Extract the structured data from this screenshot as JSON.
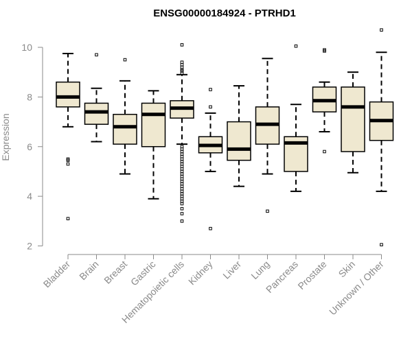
{
  "chart_data": {
    "type": "boxplot",
    "title": "ENSG00000184924 - PTRHD1",
    "xlabel": "",
    "ylabel": "Expression",
    "ylim": [
      2,
      10
    ],
    "yticks": [
      2,
      4,
      6,
      8,
      10
    ],
    "grid": false,
    "legend": "none",
    "box_fill": "#efe8d0",
    "box_stroke": "#000000",
    "axis_color": "#8a8a8a",
    "categories": [
      "Bladder",
      "Brain",
      "Breast",
      "Gastric",
      "Hematopoietic cells",
      "Kidney",
      "Liver",
      "Lung",
      "Pancreas",
      "Prostate",
      "Skin",
      "Unknown / Other"
    ],
    "boxes": [
      {
        "name": "Bladder",
        "whisker_low": 6.8,
        "q1": 7.6,
        "median": 8.0,
        "q3": 8.6,
        "whisker_high": 9.75,
        "outliers": [
          5.5,
          5.45,
          5.3,
          3.1
        ]
      },
      {
        "name": "Brain",
        "whisker_low": 6.2,
        "q1": 6.9,
        "median": 7.4,
        "q3": 7.75,
        "whisker_high": 8.35,
        "outliers": [
          9.7
        ]
      },
      {
        "name": "Breast",
        "whisker_low": 4.9,
        "q1": 6.1,
        "median": 6.8,
        "q3": 7.3,
        "whisker_high": 8.65,
        "outliers": [
          9.5
        ]
      },
      {
        "name": "Gastric",
        "whisker_low": 3.9,
        "q1": 6.0,
        "median": 7.3,
        "q3": 7.75,
        "whisker_high": 8.25,
        "outliers": []
      },
      {
        "name": "Hematopoietic cells",
        "whisker_low": 6.1,
        "q1": 7.15,
        "median": 7.55,
        "q3": 7.85,
        "whisker_high": 8.9,
        "outliers": [
          10.1,
          9.4,
          9.3,
          9.2,
          9.1,
          9.05,
          8.95,
          6.0,
          5.9,
          5.8,
          5.7,
          5.6,
          5.5,
          5.4,
          5.3,
          5.2,
          5.1,
          5.0,
          4.9,
          4.8,
          4.7,
          4.6,
          4.5,
          4.4,
          4.3,
          4.2,
          4.1,
          4.0,
          3.9,
          3.8,
          3.7,
          3.5,
          3.3,
          3.0
        ]
      },
      {
        "name": "Kidney",
        "whisker_low": 5.0,
        "q1": 5.75,
        "median": 6.05,
        "q3": 6.4,
        "whisker_high": 7.35,
        "outliers": [
          8.3,
          7.6,
          2.7
        ]
      },
      {
        "name": "Liver",
        "whisker_low": 4.4,
        "q1": 5.45,
        "median": 5.9,
        "q3": 7.0,
        "whisker_high": 8.45,
        "outliers": []
      },
      {
        "name": "Lung",
        "whisker_low": 4.9,
        "q1": 6.1,
        "median": 6.9,
        "q3": 7.6,
        "whisker_high": 9.55,
        "outliers": [
          3.4
        ]
      },
      {
        "name": "Pancreas",
        "whisker_low": 4.2,
        "q1": 5.0,
        "median": 6.15,
        "q3": 6.4,
        "whisker_high": 7.7,
        "outliers": [
          10.05
        ]
      },
      {
        "name": "Prostate",
        "whisker_low": 6.6,
        "q1": 7.4,
        "median": 7.85,
        "q3": 8.4,
        "whisker_high": 8.6,
        "outliers": [
          9.9,
          9.85,
          5.8
        ]
      },
      {
        "name": "Skin",
        "whisker_low": 4.95,
        "q1": 5.8,
        "median": 7.6,
        "q3": 8.4,
        "whisker_high": 9.0,
        "outliers": []
      },
      {
        "name": "Unknown / Other",
        "whisker_low": 4.2,
        "q1": 6.25,
        "median": 7.05,
        "q3": 7.8,
        "whisker_high": 9.8,
        "outliers": [
          10.7,
          2.05
        ]
      }
    ]
  }
}
